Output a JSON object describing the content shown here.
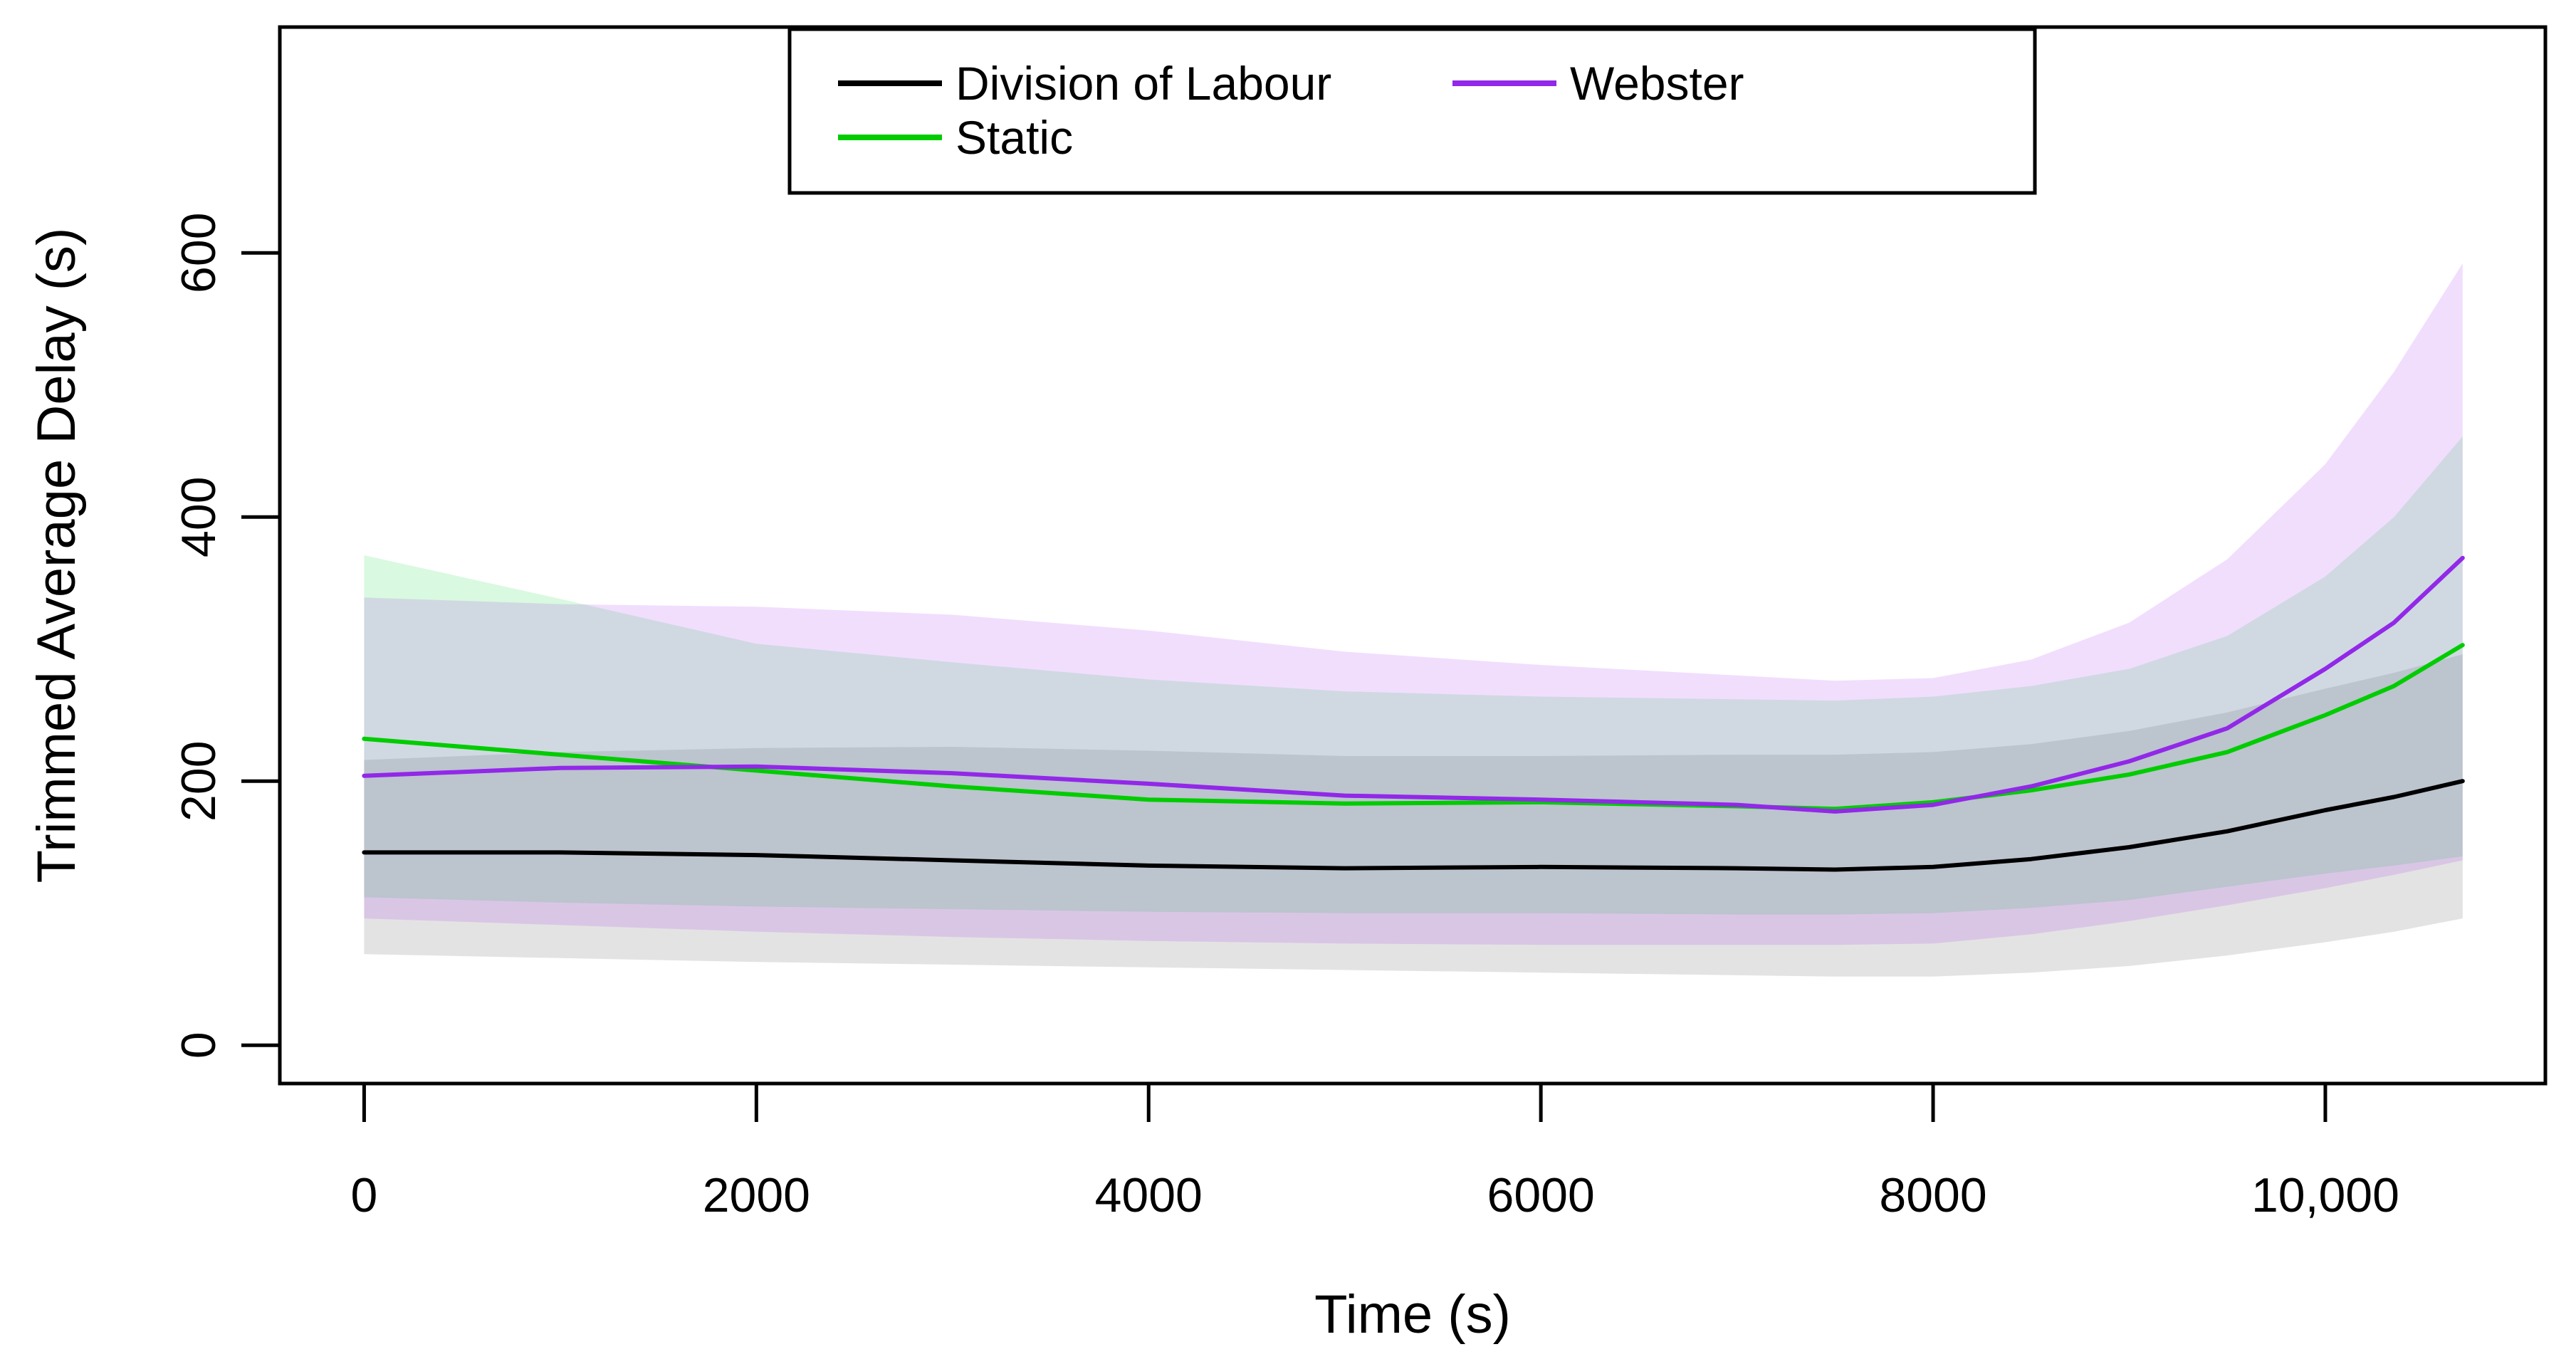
{
  "chart_data": {
    "type": "line",
    "title": "",
    "xlabel": "Time (s)",
    "ylabel": "Trimmed Average Delay (s)",
    "xlim": [
      -430,
      11122
    ],
    "ylim": [
      -29,
      771
    ],
    "grid": false,
    "legend_position": "top-center",
    "x_ticks": {
      "values": [
        0,
        2000,
        4000,
        6000,
        8000,
        10000
      ],
      "labels": [
        "0",
        "2000",
        "4000",
        "6000",
        "8000",
        "10,000"
      ]
    },
    "y_ticks": {
      "values": [
        0,
        200,
        400,
        600
      ],
      "labels": [
        "0",
        "200",
        "400",
        "600"
      ]
    },
    "x": [
      0,
      1000,
      2000,
      3000,
      4000,
      5000,
      6000,
      7000,
      7500,
      8000,
      8500,
      9000,
      9500,
      10000,
      10350,
      10700
    ],
    "series": [
      {
        "name": "Division of Labour",
        "color": "#000000",
        "band_color": "rgba(80,80,80,0.16)",
        "values": [
          146,
          146,
          144,
          140,
          136,
          134,
          135,
          134,
          133,
          135,
          141,
          150,
          162,
          178,
          188,
          200
        ],
        "band_upper": [
          216,
          222,
          225,
          226,
          223,
          219,
          219,
          220,
          220,
          222,
          228,
          238,
          252,
          270,
          282,
          296
        ],
        "band_lower": [
          69,
          66,
          63,
          61,
          59,
          57,
          55,
          53,
          52,
          52,
          55,
          60,
          68,
          78,
          86,
          96
        ]
      },
      {
        "name": "Static",
        "color": "#00CC00",
        "band_color": "rgba(0,215,45,0.15)",
        "values": [
          232,
          220,
          208,
          196,
          186,
          183,
          184,
          181,
          179,
          184,
          193,
          205,
          222,
          250,
          272,
          303
        ],
        "band_upper": [
          371,
          338,
          304,
          290,
          277,
          268,
          264,
          262,
          261,
          264,
          272,
          285,
          310,
          355,
          400,
          461
        ],
        "band_lower": [
          112,
          108,
          105,
          103,
          101,
          100,
          100,
          99,
          99,
          100,
          104,
          110,
          120,
          130,
          136,
          143
        ]
      },
      {
        "name": "Webster",
        "color": "#9228E8",
        "band_color": "rgba(160,32,240,0.15)",
        "values": [
          204,
          210,
          211,
          206,
          198,
          189,
          186,
          182,
          177,
          182,
          196,
          215,
          240,
          285,
          320,
          369
        ],
        "band_upper": [
          339,
          334,
          332,
          326,
          314,
          298,
          288,
          280,
          276,
          278,
          292,
          320,
          368,
          440,
          510,
          592
        ],
        "band_lower": [
          96,
          91,
          86,
          82,
          79,
          77,
          76,
          76,
          76,
          77,
          84,
          94,
          106,
          119,
          129,
          140
        ]
      }
    ]
  },
  "legend": {
    "items": [
      {
        "label": "Division of Labour",
        "color": "#000000",
        "row": 0,
        "col": 0
      },
      {
        "label": "Static",
        "color": "#00CC00",
        "row": 1,
        "col": 0
      },
      {
        "label": "Webster",
        "color": "#9228E8",
        "row": 0,
        "col": 1
      }
    ]
  }
}
